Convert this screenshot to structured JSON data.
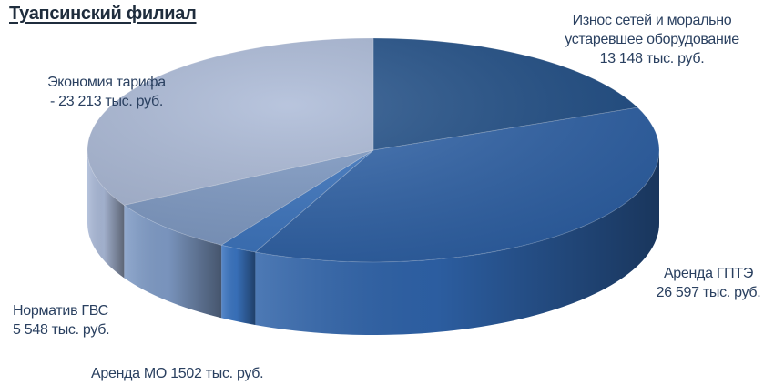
{
  "title": "Туапсинский филиал",
  "chart_data": {
    "type": "pie",
    "title": "Туапсинский филиал",
    "unit": "тыс. руб.",
    "slices": [
      {
        "category": "Износ сетей и морально устаревшее оборудование",
        "value": 13148,
        "color": "#1f4e87",
        "label_lines": [
          "Износ сетей и морально",
          "устаревшее оборудование",
          "13 148 тыс. руб."
        ]
      },
      {
        "category": "Аренда ГПТЭ",
        "value": 26597,
        "color": "#2e62a8",
        "label_lines": [
          "Аренда ГПТЭ",
          "26 597 тыс. руб."
        ]
      },
      {
        "category": "Аренда МО",
        "value": 1502,
        "color": "#3a74c0",
        "label_lines": [
          "Аренда МО 1502 тыс. руб."
        ]
      },
      {
        "category": "Норматив ГВС",
        "value": 5548,
        "color": "#7f9bc6",
        "label_lines": [
          "Норматив ГВС",
          "5 548 тыс. руб."
        ]
      },
      {
        "category": "Экономия тарифа",
        "value": -23213,
        "color": "#a9b8d6",
        "label_lines": [
          "Экономия тарифа",
          "- 23 213 тыс. руб."
        ]
      }
    ]
  }
}
